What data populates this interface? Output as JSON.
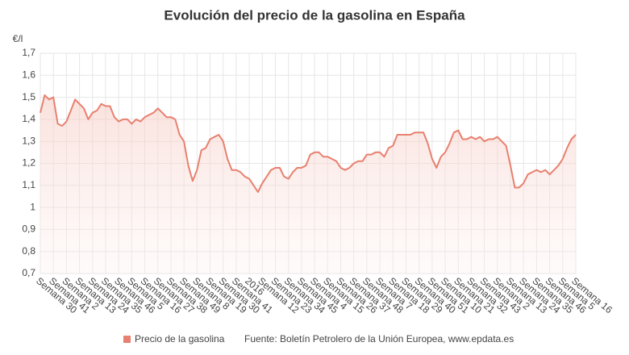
{
  "chart_data": {
    "type": "line",
    "title": "Evolución del precio de la gasolina en España",
    "y_unit": "€/l",
    "source": "Fuente: Boletín Petrolero de la Unión Europea, www.epdata.es",
    "categories": [
      "Semana 30",
      null,
      null,
      "Semana 41",
      null,
      null,
      "Semana 2",
      null,
      null,
      "Semana 13",
      null,
      null,
      "Semana 24",
      null,
      null,
      "Semana 35",
      null,
      null,
      "Semana 46",
      null,
      null,
      "Semana 5",
      null,
      null,
      "Semana 16",
      null,
      null,
      "Semana 27",
      null,
      null,
      "Semana 38",
      null,
      null,
      "Semana 49",
      null,
      null,
      "Semana 8",
      null,
      null,
      "Semana 19",
      null,
      null,
      "Semana 30",
      null,
      null,
      "Semana 41",
      null,
      null,
      "2016",
      null,
      null,
      "Semana 12",
      null,
      null,
      "Semana 23",
      null,
      null,
      "Semana 34",
      null,
      null,
      "Semana 45",
      null,
      null,
      "Semana 4",
      null,
      null,
      "Semana 15",
      null,
      null,
      "Semana 26",
      null,
      null,
      "Semana 37",
      null,
      null,
      "Semana 48",
      null,
      null,
      "Semana 7",
      null,
      null,
      "Semana 18",
      null,
      null,
      "Semana 29",
      null,
      null,
      "Semana 40",
      null,
      null,
      "Semana 51",
      null,
      null,
      "Semana 10",
      null,
      null,
      "Semana 21",
      null,
      null,
      "Semana 32",
      null,
      null,
      "Semana 43",
      null,
      null,
      "Semana 2",
      null,
      null,
      "Semana 13",
      null,
      null,
      "Semana 24",
      null,
      null,
      "Semana 35",
      null,
      null,
      "Semana 46",
      null,
      null,
      "Semana 5",
      null,
      null,
      "Semana 16"
    ],
    "series": [
      {
        "name": "Precio de la gasolina",
        "color": "#e8806f",
        "values": [
          1.43,
          1.51,
          1.49,
          1.5,
          1.38,
          1.37,
          1.39,
          1.44,
          1.49,
          1.47,
          1.45,
          1.4,
          1.43,
          1.44,
          1.47,
          1.46,
          1.46,
          1.41,
          1.39,
          1.4,
          1.4,
          1.38,
          1.4,
          1.39,
          1.41,
          1.42,
          1.43,
          1.45,
          1.43,
          1.41,
          1.41,
          1.4,
          1.33,
          1.3,
          1.19,
          1.12,
          1.17,
          1.26,
          1.27,
          1.31,
          1.32,
          1.33,
          1.3,
          1.22,
          1.17,
          1.17,
          1.16,
          1.14,
          1.13,
          1.1,
          1.07,
          1.11,
          1.14,
          1.17,
          1.18,
          1.18,
          1.14,
          1.13,
          1.16,
          1.18,
          1.18,
          1.19,
          1.24,
          1.25,
          1.25,
          1.23,
          1.23,
          1.22,
          1.21,
          1.18,
          1.17,
          1.18,
          1.2,
          1.21,
          1.21,
          1.24,
          1.24,
          1.25,
          1.25,
          1.23,
          1.27,
          1.28,
          1.33,
          1.33,
          1.33,
          1.33,
          1.34,
          1.34,
          1.34,
          1.29,
          1.22,
          1.18,
          1.23,
          1.25,
          1.29,
          1.34,
          1.35,
          1.31,
          1.31,
          1.32,
          1.31,
          1.32,
          1.3,
          1.31,
          1.31,
          1.32,
          1.3,
          1.28,
          1.19,
          1.09,
          1.09,
          1.11,
          1.15,
          1.16,
          1.17,
          1.16,
          1.17,
          1.15,
          1.17,
          1.19,
          1.22,
          1.27,
          1.31,
          1.33
        ]
      }
    ],
    "ylim": [
      0.7,
      1.7
    ],
    "yticks": [
      {
        "value": 0.7,
        "label": "0,7"
      },
      {
        "value": 0.8,
        "label": "0,8"
      },
      {
        "value": 0.9,
        "label": "0,9"
      },
      1,
      {
        "value": 1.1,
        "label": "1,1"
      },
      {
        "value": 1.2,
        "label": "1,2"
      },
      {
        "value": 1.3,
        "label": "1,3"
      },
      {
        "value": 1.4,
        "label": "1,4"
      },
      {
        "value": 1.5,
        "label": "1,5"
      },
      {
        "value": 1.6,
        "label": "1,6"
      },
      {
        "value": 1.7,
        "label": "1,7"
      }
    ],
    "grid": true
  }
}
